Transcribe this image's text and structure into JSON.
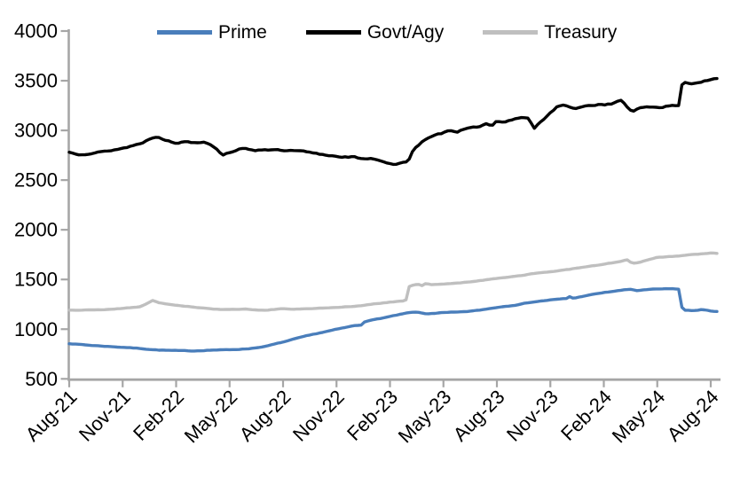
{
  "chart_data": {
    "type": "line",
    "title": "",
    "xlabel": "",
    "ylabel": "",
    "x_unit": "months since Aug-2021",
    "x_range": [
      0,
      36.35
    ],
    "ylim": [
      500,
      4000
    ],
    "y_ticks": [
      500,
      1000,
      1500,
      2000,
      2500,
      3000,
      3500,
      4000
    ],
    "x_tick_months": [
      0,
      3,
      6,
      9,
      12,
      15,
      18,
      21,
      24,
      27,
      30,
      33,
      36
    ],
    "x_tick_labels": [
      "Aug-21",
      "Nov-21",
      "Feb-22",
      "May-22",
      "Aug-22",
      "Nov-22",
      "Feb-23",
      "May-23",
      "Aug-23",
      "Nov-23",
      "Feb-24",
      "May-24",
      "Aug-24"
    ],
    "grid": false,
    "legend_position": "top",
    "axis_color": "#a6a6a6",
    "text_color": "#000000",
    "series": [
      {
        "name": "Prime",
        "color": "#4a7ebb",
        "noise_amp": 4.5,
        "seed": 7,
        "anchors": [
          [
            0,
            855
          ],
          [
            1,
            840
          ],
          [
            2,
            828
          ],
          [
            3,
            818
          ],
          [
            4,
            805
          ],
          [
            5,
            790
          ],
          [
            6,
            784
          ],
          [
            7,
            781
          ],
          [
            8,
            790
          ],
          [
            9,
            793
          ],
          [
            10,
            802
          ],
          [
            11,
            826
          ],
          [
            12,
            870
          ],
          [
            13,
            918
          ],
          [
            14,
            960
          ],
          [
            15,
            998
          ],
          [
            16,
            1035
          ],
          [
            16.4,
            1042
          ],
          [
            16.6,
            1082
          ],
          [
            17,
            1092
          ],
          [
            18,
            1127
          ],
          [
            19,
            1163
          ],
          [
            19.5,
            1172
          ],
          [
            20,
            1154
          ],
          [
            21,
            1166
          ],
          [
            22,
            1172
          ],
          [
            23,
            1190
          ],
          [
            24,
            1219
          ],
          [
            25,
            1243
          ],
          [
            26,
            1273
          ],
          [
            27,
            1294
          ],
          [
            27.9,
            1308
          ],
          [
            28.1,
            1328
          ],
          [
            28.3,
            1310
          ],
          [
            29,
            1338
          ],
          [
            30,
            1368
          ],
          [
            31,
            1392
          ],
          [
            31.6,
            1402
          ],
          [
            31.8,
            1386
          ],
          [
            32,
            1392
          ],
          [
            33,
            1404
          ],
          [
            34,
            1406
          ],
          [
            34.25,
            1400
          ],
          [
            34.4,
            1192
          ],
          [
            35,
            1186
          ],
          [
            35.5,
            1198
          ],
          [
            36,
            1182
          ],
          [
            36.35,
            1178
          ]
        ]
      },
      {
        "name": "Govt/Agy",
        "color": "#000000",
        "noise_amp": 13,
        "seed": 13,
        "anchors": [
          [
            0,
            2780
          ],
          [
            0.5,
            2762
          ],
          [
            1,
            2768
          ],
          [
            2,
            2788
          ],
          [
            3,
            2820
          ],
          [
            4,
            2868
          ],
          [
            4.7,
            2930
          ],
          [
            5,
            2940
          ],
          [
            5.3,
            2915
          ],
          [
            6,
            2865
          ],
          [
            6.4,
            2892
          ],
          [
            7,
            2880
          ],
          [
            7.6,
            2888
          ],
          [
            8,
            2858
          ],
          [
            8.6,
            2755
          ],
          [
            9,
            2780
          ],
          [
            9.5,
            2812
          ],
          [
            10,
            2812
          ],
          [
            10.5,
            2800
          ],
          [
            11,
            2812
          ],
          [
            12,
            2795
          ],
          [
            13,
            2790
          ],
          [
            14,
            2760
          ],
          [
            15,
            2740
          ],
          [
            16,
            2732
          ],
          [
            16.5,
            2705
          ],
          [
            17,
            2722
          ],
          [
            17.5,
            2695
          ],
          [
            18,
            2668
          ],
          [
            18.2,
            2655
          ],
          [
            18.6,
            2668
          ],
          [
            19,
            2680
          ],
          [
            19.3,
            2810
          ],
          [
            19.9,
            2900
          ],
          [
            20.5,
            2945
          ],
          [
            21,
            2975
          ],
          [
            21.4,
            3000
          ],
          [
            21.8,
            2990
          ],
          [
            22.2,
            3020
          ],
          [
            22.6,
            3040
          ],
          [
            23,
            3040
          ],
          [
            23.4,
            3060
          ],
          [
            23.7,
            3035
          ],
          [
            24,
            3092
          ],
          [
            24.5,
            3085
          ],
          [
            25,
            3118
          ],
          [
            25.7,
            3132
          ],
          [
            26.1,
            3020
          ],
          [
            26.7,
            3125
          ],
          [
            27.4,
            3240
          ],
          [
            27.8,
            3258
          ],
          [
            28.3,
            3215
          ],
          [
            29,
            3242
          ],
          [
            29.7,
            3262
          ],
          [
            30,
            3258
          ],
          [
            30.5,
            3272
          ],
          [
            31,
            3302
          ],
          [
            31.6,
            3182
          ],
          [
            32.1,
            3228
          ],
          [
            32.5,
            3240
          ],
          [
            33,
            3230
          ],
          [
            33.5,
            3242
          ],
          [
            34,
            3250
          ],
          [
            34.25,
            3252
          ],
          [
            34.4,
            3488
          ],
          [
            34.7,
            3478
          ],
          [
            35,
            3472
          ],
          [
            35.6,
            3495
          ],
          [
            36,
            3505
          ],
          [
            36.35,
            3522
          ]
        ]
      },
      {
        "name": "Treasury",
        "color": "#bfbfbf",
        "noise_amp": 4.5,
        "seed": 21,
        "anchors": [
          [
            0,
            1192
          ],
          [
            1,
            1192
          ],
          [
            2,
            1197
          ],
          [
            3,
            1209
          ],
          [
            4,
            1227
          ],
          [
            4.7,
            1289
          ],
          [
            5,
            1265
          ],
          [
            6,
            1241
          ],
          [
            7,
            1220
          ],
          [
            8,
            1202
          ],
          [
            9,
            1199
          ],
          [
            10,
            1202
          ],
          [
            11,
            1190
          ],
          [
            12,
            1205
          ],
          [
            13,
            1202
          ],
          [
            14,
            1211
          ],
          [
            15,
            1220
          ],
          [
            16,
            1229
          ],
          [
            17,
            1250
          ],
          [
            18,
            1273
          ],
          [
            18.8,
            1285
          ],
          [
            18.95,
            1300
          ],
          [
            19.05,
            1425
          ],
          [
            19.3,
            1445
          ],
          [
            19.6,
            1452
          ],
          [
            19.8,
            1438
          ],
          [
            20,
            1459
          ],
          [
            20.3,
            1448
          ],
          [
            21,
            1453
          ],
          [
            22,
            1465
          ],
          [
            23,
            1489
          ],
          [
            24,
            1510
          ],
          [
            25,
            1533
          ],
          [
            26,
            1557
          ],
          [
            27,
            1578
          ],
          [
            28,
            1602
          ],
          [
            29,
            1626
          ],
          [
            30,
            1653
          ],
          [
            31,
            1682
          ],
          [
            31.3,
            1700
          ],
          [
            31.6,
            1660
          ],
          [
            32,
            1672
          ],
          [
            33,
            1721
          ],
          [
            34,
            1733
          ],
          [
            35,
            1751
          ],
          [
            36,
            1765
          ],
          [
            36.35,
            1762
          ]
        ]
      }
    ]
  },
  "legend": {
    "items": [
      {
        "label": "Prime",
        "color": "#4a7ebb"
      },
      {
        "label": "Govt/Agy",
        "color": "#000000"
      },
      {
        "label": "Treasury",
        "color": "#bfbfbf"
      }
    ]
  }
}
